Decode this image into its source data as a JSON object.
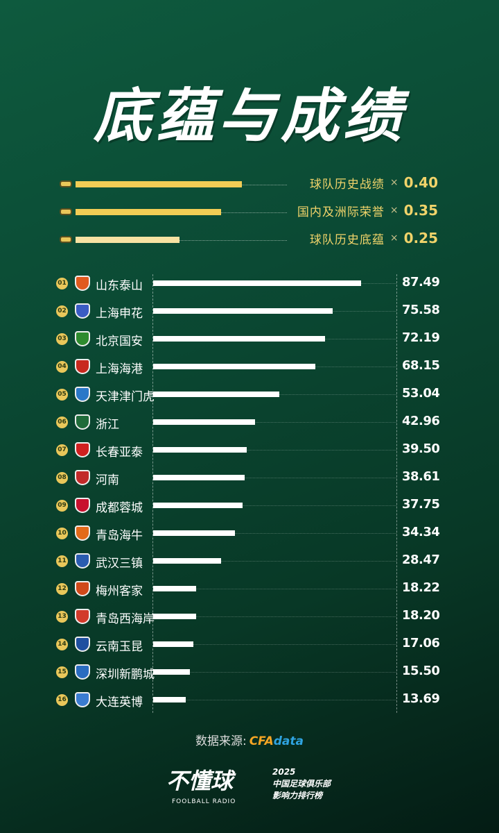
{
  "title": "底蕴与成绩",
  "legend": [
    {
      "label": "球队历史战绩",
      "times": "×",
      "weight": "0.40",
      "color": "#f2cd55"
    },
    {
      "label": "国内及洲际荣誉",
      "times": "×",
      "weight": "0.35",
      "color": "#f2cd55"
    },
    {
      "label": "球队历史底蕴",
      "times": "×",
      "weight": "0.25",
      "color": "#f7e2a2"
    }
  ],
  "chart_data": {
    "type": "bar",
    "orientation": "horizontal",
    "categories": [
      "山东泰山",
      "上海申花",
      "北京国安",
      "上海海港",
      "天津津门虎",
      "浙江",
      "长春亚泰",
      "河南",
      "成都蓉城",
      "青岛海牛",
      "武汉三镇",
      "梅州客家",
      "青岛西海岸",
      "云南玉昆",
      "深圳新鹏城",
      "大连英博"
    ],
    "ranks": [
      "01",
      "02",
      "03",
      "04",
      "05",
      "06",
      "07",
      "08",
      "09",
      "10",
      "11",
      "12",
      "13",
      "14",
      "15",
      "16"
    ],
    "values": [
      87.49,
      75.58,
      72.19,
      68.15,
      53.04,
      42.96,
      39.5,
      38.61,
      37.75,
      34.34,
      28.47,
      18.22,
      18.2,
      17.06,
      15.5,
      13.69
    ],
    "value_labels": [
      "87.49",
      "75.58",
      "72.19",
      "68.15",
      "53.04",
      "42.96",
      "39.50",
      "38.61",
      "37.75",
      "34.34",
      "28.47",
      "18.22",
      "18.20",
      "17.06",
      "15.50",
      "13.69"
    ],
    "logo_colors": [
      "#e05a1e",
      "#3a5cc4",
      "#2e8b2e",
      "#c8281e",
      "#2a78c8",
      "#1f6b3a",
      "#d02020",
      "#c22a2a",
      "#c8102e",
      "#e36a1a",
      "#2a5cb0",
      "#d04a1a",
      "#d23a2a",
      "#1e4fa0",
      "#2a6cc0",
      "#3a7cd0"
    ],
    "bar_color": "#ffffff",
    "xlim": [
      0,
      87.49
    ]
  },
  "source": {
    "label": "数据来源:",
    "brand_a": "CFA",
    "brand_b": "data"
  },
  "footer": {
    "brand": "不懂球",
    "brand_sub": "FOOLBALL RADIO",
    "year": "2025",
    "line1": "中国足球俱乐部",
    "line2": "影响力排行榜"
  }
}
